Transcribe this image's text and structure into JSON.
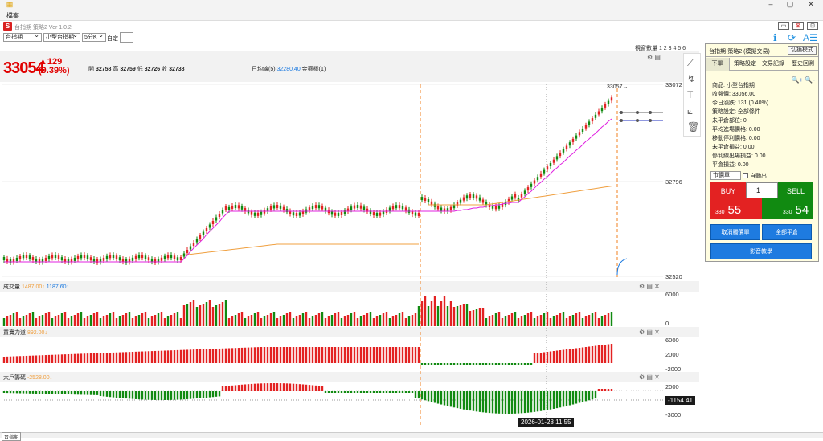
{
  "window": {
    "menu_label": "檔案",
    "app_title": "台指期 策略2 Ver 1.0.2",
    "logo": "S"
  },
  "toolbar": {
    "symbol": "台指期",
    "product": "小型台指期",
    "interval": "5分K",
    "custom_label": "自定"
  },
  "header": {
    "price": "33054",
    "change": "▲129",
    "change_pct": "(0.39%)",
    "open_label": "開",
    "open": "32758",
    "high_label": "高",
    "high": "32759",
    "low_label": "低",
    "low": "32726",
    "close_label": "收",
    "close": "32738",
    "ma_label": "日均線(5)",
    "ma_value": "32280.40",
    "ma_extra": "金箍棒(1)",
    "view_count": "視窗數量 1 2 3 4 5 6"
  },
  "axes": {
    "price_ticks": [
      "33072",
      "32796",
      "32520"
    ],
    "vol_ticks": [
      "6000",
      "0"
    ],
    "power_ticks": [
      "6000",
      "2000",
      "-2000"
    ],
    "big_ticks": [
      "2000",
      "-3000"
    ],
    "last_big": "-1154.41",
    "price_tag": "33057→",
    "cursor_time": "2026-01-28  11:55"
  },
  "subcharts": {
    "volume_label": "成交量",
    "volume_v1": "1487.00↑",
    "volume_v2": "1187.60↑",
    "power_label": "買賣力道",
    "power_value": "892.00↓",
    "big_label": "大戶籌碼",
    "big_value": "-2528.00↓"
  },
  "panel": {
    "title": "台指期-策略2 (模擬交易)",
    "mode_button": "切換模式",
    "tabs": [
      "下單",
      "策略設定",
      "交易記錄",
      "歷史回測"
    ],
    "info": [
      "商品: 小型台指期",
      "收盤價: 33056.00",
      "今日漲跌: 131 (0.40%)",
      "策略設定: 全部條件",
      "未平倉部位: 0",
      "平均進場價格: 0.00",
      "移動停利價格: 0.00",
      "未平倉損益: 0.00",
      "停利線出場損益: 0.00",
      "平倉損益: 0.00"
    ],
    "order_type": "市價單",
    "auto_exit": "自動出",
    "buy_label": "BUY",
    "sell_label": "SELL",
    "qty": "1",
    "buy_price_prefix": "330",
    "buy_price_main": "55",
    "sell_price_prefix": "330",
    "sell_price_main": "54",
    "cancel_label": "取消觸價單",
    "flatten_label": "全部平倉",
    "video_label": "影音教學"
  },
  "statusbar": {
    "tab": "台指期"
  },
  "colors": {
    "up": "#e32222",
    "down": "#118a11",
    "ma_line": "#f0a040",
    "stop_line": "#e020e0",
    "accent": "#1e7be0"
  }
}
